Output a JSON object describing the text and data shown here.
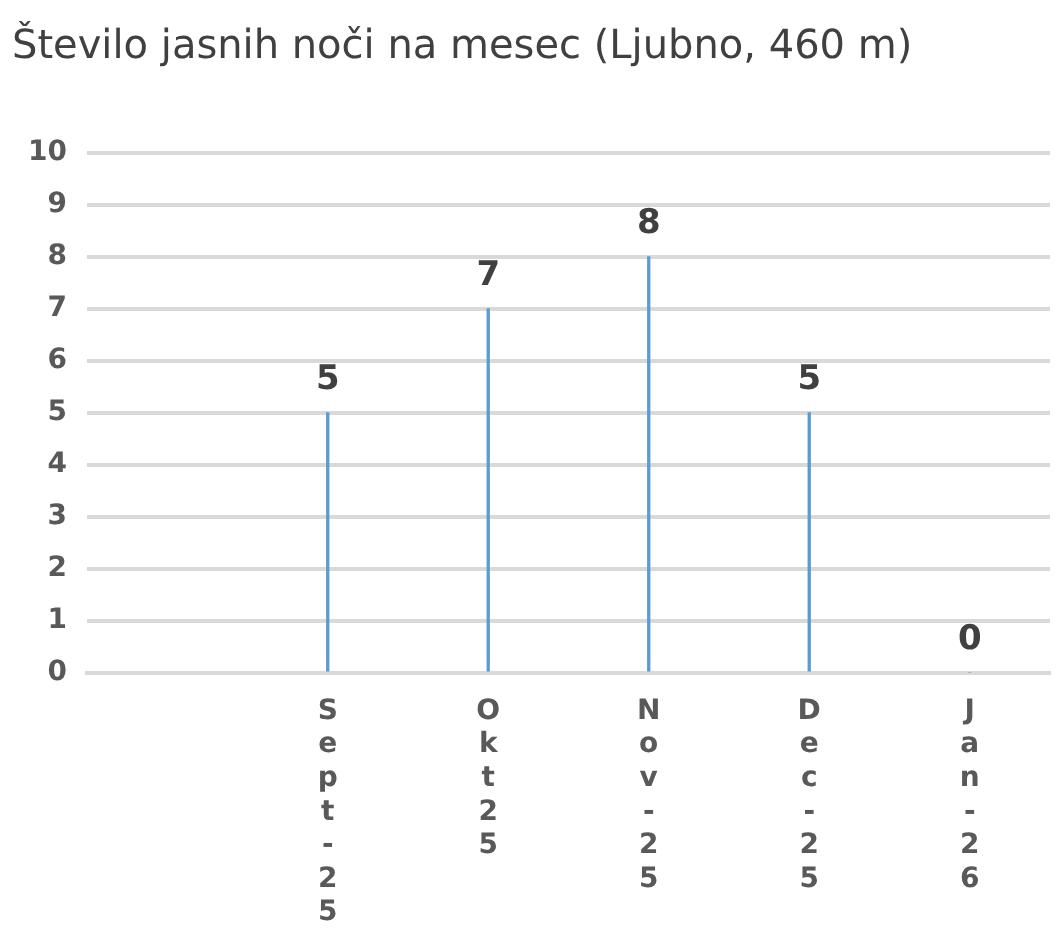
{
  "chart_data": {
    "type": "bar",
    "title": "Število jasnih noči na mesec (Ljubno, 460 m)",
    "categories": [
      null,
      "Sept-25",
      "Okt25",
      "Nov-25",
      "Dec-25",
      "Jan-26"
    ],
    "values": [
      null,
      5,
      7,
      8,
      5,
      0
    ],
    "color": "#5b9bd5",
    "ylim": [
      0,
      10
    ],
    "yticks": [
      0,
      1,
      2,
      3,
      4,
      5,
      6,
      7,
      8,
      9,
      10
    ],
    "grid": "y",
    "data_labels": true,
    "legend": false
  }
}
